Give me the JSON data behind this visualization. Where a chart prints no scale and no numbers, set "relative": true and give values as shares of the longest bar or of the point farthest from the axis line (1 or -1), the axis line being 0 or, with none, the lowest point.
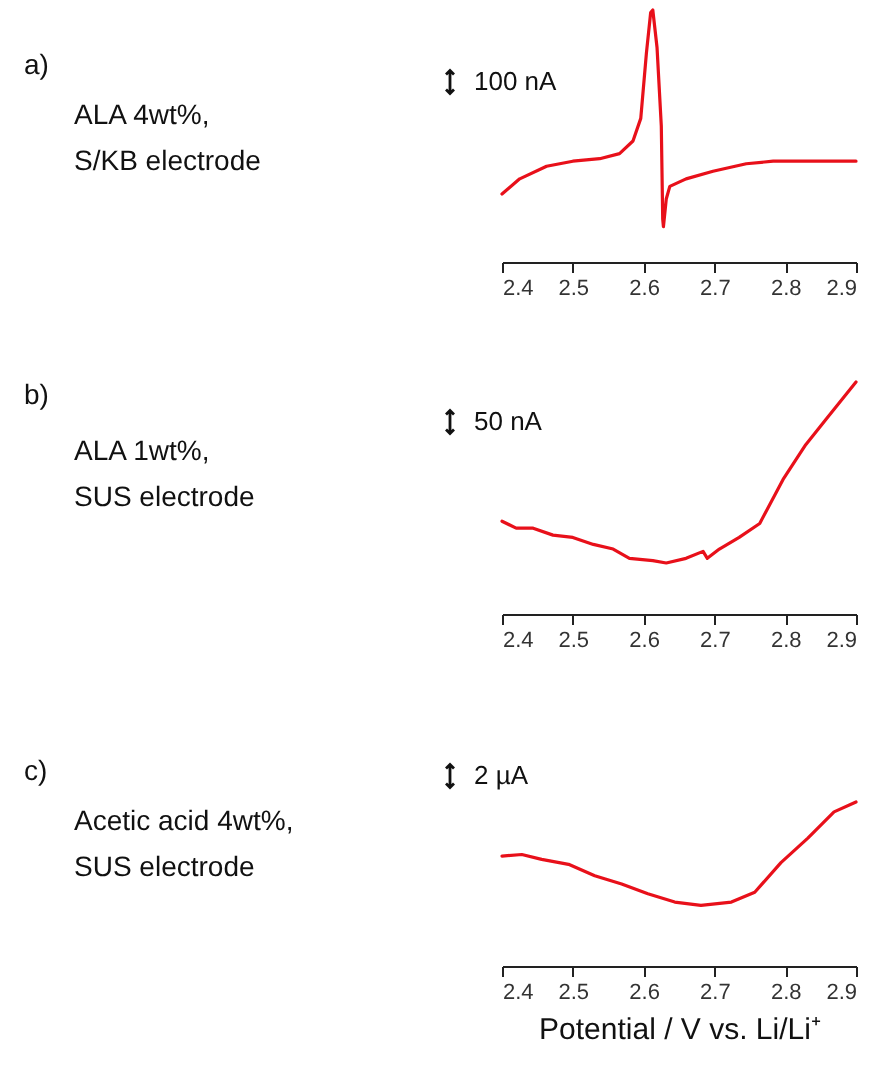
{
  "chart_data": [
    {
      "type": "line",
      "relative": true,
      "xlim": [
        2.4,
        2.9
      ],
      "xticks": [
        2.4,
        2.5,
        2.6,
        2.7,
        2.8,
        2.9
      ],
      "annotations": [
        "a)",
        "ALA 4wt%,\nS/KB electrode",
        "100 nA"
      ],
      "x": [
        2.4,
        2.425,
        2.463,
        2.5,
        2.538,
        2.566,
        2.585,
        2.596,
        2.604,
        2.61,
        2.613,
        2.619,
        2.625,
        2.627,
        2.628,
        2.632,
        2.637,
        2.66,
        2.698,
        2.745,
        2.783,
        2.839,
        2.9
      ],
      "series": [
        {
          "color": "#e8101a",
          "values": [
            0.27,
            0.33,
            0.38,
            0.4,
            0.41,
            0.43,
            0.48,
            0.57,
            0.83,
            0.99,
            1,
            0.85,
            0.54,
            0.17,
            0.14,
            0.25,
            0.3,
            0.33,
            0.36,
            0.39,
            0.4,
            0.4,
            0.4
          ]
        }
      ]
    },
    {
      "type": "line",
      "relative": true,
      "xlim": [
        2.4,
        2.9
      ],
      "xticks": [
        2.4,
        2.5,
        2.6,
        2.7,
        2.8,
        2.9
      ],
      "annotations": [
        "b)",
        "ALA 1wt%,\nSUS electrode",
        "50 nA"
      ],
      "x": [
        2.4,
        2.42,
        2.444,
        2.472,
        2.5,
        2.529,
        2.557,
        2.58,
        2.613,
        2.632,
        2.66,
        2.684,
        2.69,
        2.707,
        2.735,
        2.764,
        2.797,
        2.829,
        2.858,
        2.9
      ],
      "series": [
        {
          "color": "#e8101a",
          "values": [
            0.4,
            0.37,
            0.37,
            0.34,
            0.33,
            0.3,
            0.28,
            0.24,
            0.23,
            0.22,
            0.24,
            0.27,
            0.24,
            0.28,
            0.33,
            0.39,
            0.58,
            0.73,
            0.84,
            1
          ]
        }
      ]
    },
    {
      "type": "line",
      "relative": true,
      "xlim": [
        2.4,
        2.9
      ],
      "xticks": [
        2.4,
        2.5,
        2.6,
        2.7,
        2.8,
        2.9
      ],
      "xlabel": "Potential / V vs. Li/Li⁺",
      "annotations": [
        "c)",
        "Acetic acid 4wt%,\nSUS electrode",
        "2 µA"
      ],
      "x": [
        2.4,
        2.428,
        2.456,
        2.494,
        2.531,
        2.569,
        2.606,
        2.644,
        2.681,
        2.724,
        2.757,
        2.794,
        2.832,
        2.869,
        2.9
      ],
      "series": [
        {
          "color": "#e8101a",
          "values": [
            0.67,
            0.68,
            0.65,
            0.62,
            0.55,
            0.5,
            0.44,
            0.39,
            0.37,
            0.39,
            0.45,
            0.63,
            0.78,
            0.94,
            1
          ]
        }
      ]
    }
  ]
}
